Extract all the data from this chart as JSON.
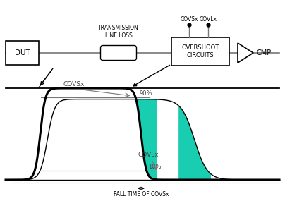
{
  "black": "#000000",
  "gray": "#777777",
  "lgray": "#aaaaaa",
  "teal": "#00c8a8",
  "dgray": "#444444",
  "dut_label": "DUT",
  "tll_label": "TRANSMISSION\nLINE LOSS",
  "overshoot_label": "OVERSHOOT\nCIRCUITS",
  "cmp_label": "CMP",
  "covsx_top": "COVSx",
  "covlx_top": "COVLx",
  "covsx_wave": "COVSx",
  "covlx_wave": "COVLx",
  "label_90": "90%",
  "label_10": "10%",
  "fall_time_label": "FALL TIME OF COVSx",
  "fig_w": 4.04,
  "fig_h": 2.85,
  "dpi": 100
}
